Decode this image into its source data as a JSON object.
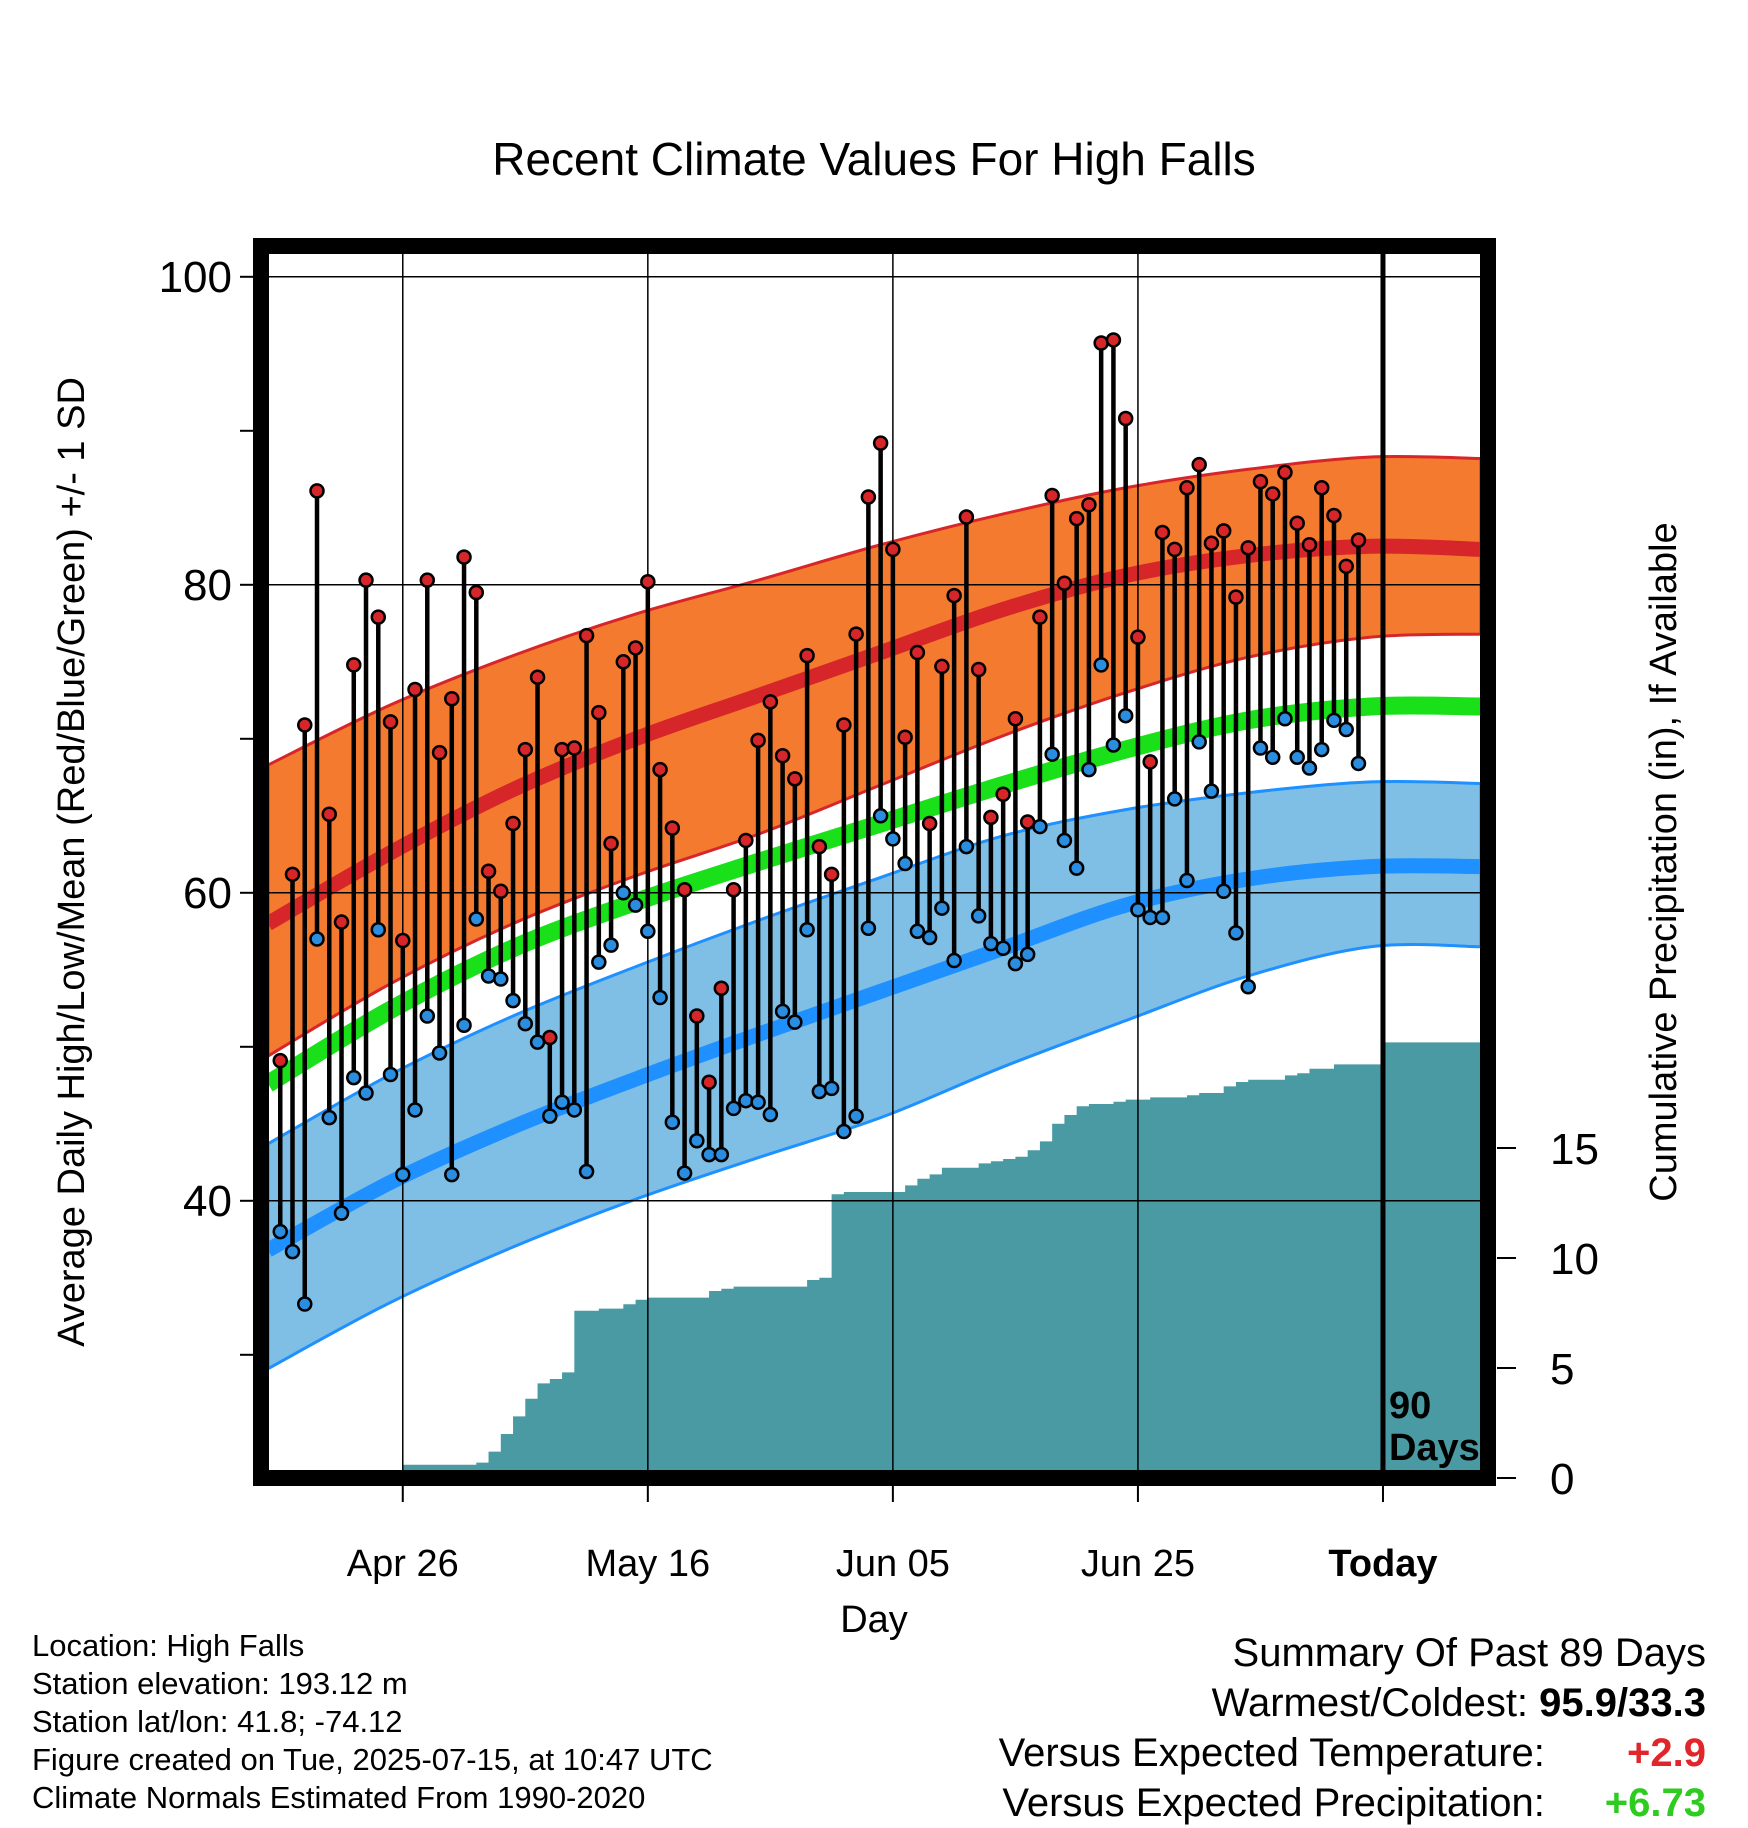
{
  "chart_data": {
    "type": "line",
    "title": "Recent Climate Values For High Falls",
    "xlabel": "Day",
    "ylabel": "Average Daily High/Low/Mean (Red/Blue/Green) +/- 1 SD",
    "y2label": "Cumulative Precipitation (in), If Available",
    "ylim": [
      22,
      102
    ],
    "y_ticks": [
      40,
      60,
      80,
      100
    ],
    "y2lim": [
      0,
      56
    ],
    "y2_ticks": [
      0,
      5,
      10,
      15
    ],
    "x_range_days": [
      0,
      99
    ],
    "x_ticks": [
      {
        "day": 11,
        "label": "Apr 26"
      },
      {
        "day": 31,
        "label": "May 16"
      },
      {
        "day": 51,
        "label": "Jun 05"
      },
      {
        "day": 71,
        "label": "Jun 25"
      },
      {
        "day": 91,
        "label": "Today"
      }
    ],
    "grid": true,
    "today_label": "90 Days",
    "colors": {
      "high_band": "#f47a30",
      "high_mean": "#d7262a",
      "low_band": "#7fbfe6",
      "low_mean": "#1e90ff",
      "mean": "#19e019",
      "precip": "#4a9aa3",
      "high_dot": "#d7262a",
      "low_dot": "#2b8de0"
    },
    "normals": {
      "days": [
        0,
        10,
        20,
        30,
        40,
        50,
        60,
        70,
        80,
        90,
        99
      ],
      "high_mean": [
        58.0,
        62.6,
        66.7,
        70.0,
        72.8,
        75.6,
        78.4,
        80.6,
        81.9,
        82.5,
        82.3
      ],
      "high_upper": [
        68.3,
        72.2,
        75.4,
        78.1,
        80.3,
        82.6,
        84.6,
        86.3,
        87.5,
        88.3,
        88.2
      ],
      "high_lower": [
        49.4,
        54.1,
        58.0,
        61.1,
        63.8,
        67.0,
        70.2,
        73.0,
        75.3,
        76.6,
        76.8
      ],
      "mean": [
        47.6,
        52.4,
        56.4,
        59.4,
        62.0,
        64.5,
        67.0,
        69.3,
        71.2,
        72.1,
        72.1
      ],
      "low_mean": [
        36.8,
        41.2,
        44.8,
        47.9,
        50.8,
        53.6,
        56.4,
        59.2,
        60.9,
        61.7,
        61.7
      ],
      "low_upper": [
        43.7,
        48.2,
        52.0,
        55.2,
        58.2,
        61.0,
        63.7,
        65.4,
        66.5,
        67.2,
        67.1
      ],
      "low_lower": [
        29.1,
        33.4,
        37.0,
        40.1,
        42.8,
        45.4,
        48.7,
        51.7,
        54.6,
        56.5,
        56.5
      ]
    },
    "observed": {
      "start_day": 1,
      "high": [
        49.1,
        61.2,
        70.9,
        86.1,
        65.1,
        58.1,
        74.8,
        80.3,
        77.9,
        71.1,
        56.9,
        73.2,
        80.3,
        69.1,
        72.6,
        81.8,
        79.5,
        61.4,
        60.1,
        64.5,
        69.3,
        74.0,
        50.6,
        69.3,
        69.4,
        76.7,
        71.7,
        63.2,
        75.0,
        75.9,
        80.2,
        68.0,
        64.2,
        60.2,
        52.0,
        47.7,
        53.8,
        60.2,
        63.4,
        69.9,
        72.4,
        68.9,
        67.4,
        75.4,
        63.0,
        61.2,
        70.9,
        76.8,
        85.7,
        89.2,
        82.3,
        70.1,
        75.6,
        64.5,
        74.7,
        79.3,
        84.4,
        74.5,
        64.9,
        66.4,
        71.3,
        64.6,
        77.9,
        85.8,
        80.1,
        84.3,
        85.2,
        95.7,
        95.9,
        90.8,
        76.6,
        68.5,
        83.4,
        82.3,
        86.3,
        87.8,
        82.7,
        83.5,
        79.2,
        82.4,
        86.7,
        85.9,
        87.3,
        84.0,
        82.6,
        86.3,
        84.5,
        81.2,
        82.9
      ],
      "low": [
        38.0,
        36.7,
        33.3,
        57.0,
        45.4,
        39.2,
        48.0,
        47.0,
        57.6,
        48.2,
        41.7,
        45.9,
        52.0,
        49.6,
        41.7,
        51.4,
        58.3,
        54.6,
        54.4,
        53.0,
        51.5,
        50.3,
        45.5,
        46.4,
        45.9,
        41.9,
        55.5,
        56.6,
        60.0,
        59.2,
        57.5,
        53.2,
        45.1,
        41.8,
        43.9,
        43.0,
        43.0,
        46.0,
        46.5,
        46.4,
        45.6,
        52.3,
        51.6,
        57.6,
        47.1,
        47.3,
        44.5,
        45.5,
        57.7,
        65.0,
        63.5,
        61.9,
        57.5,
        57.1,
        59.0,
        55.6,
        63.0,
        58.5,
        56.7,
        56.4,
        55.4,
        56.0,
        64.3,
        69.0,
        63.4,
        61.6,
        68.0,
        74.8,
        69.6,
        71.5,
        58.9,
        58.4,
        58.4,
        66.1,
        60.8,
        69.8,
        66.6,
        60.1,
        57.4,
        53.9,
        69.4,
        68.8,
        71.3,
        68.8,
        68.1,
        69.3,
        71.2,
        70.6,
        68.4
      ]
    },
    "precip": {
      "days": [
        0,
        10,
        11,
        17,
        18,
        19,
        20,
        21,
        22,
        23,
        24,
        25,
        26,
        27,
        28,
        29,
        30,
        31,
        32,
        36,
        37,
        38,
        39,
        44,
        45,
        46,
        47,
        51,
        52,
        53,
        54,
        55,
        58,
        59,
        60,
        61,
        62,
        63,
        64,
        65,
        66,
        67,
        68,
        69,
        70,
        71,
        72,
        73,
        75,
        76,
        77,
        78,
        79,
        80,
        82,
        83,
        84,
        85,
        86,
        87,
        88,
        89,
        90,
        91,
        92,
        99
      ],
      "values": [
        0,
        0,
        0.6,
        0.7,
        1.2,
        2.0,
        2.8,
        3.6,
        4.3,
        4.5,
        4.8,
        7.6,
        7.6,
        7.7,
        7.7,
        7.9,
        8.1,
        8.2,
        8.2,
        8.5,
        8.6,
        8.7,
        8.7,
        9.0,
        9.1,
        12.9,
        13.0,
        13.0,
        13.3,
        13.6,
        13.8,
        14.1,
        14.3,
        14.4,
        14.5,
        14.6,
        14.9,
        15.3,
        16.1,
        16.5,
        16.9,
        17.0,
        17.0,
        17.1,
        17.2,
        17.2,
        17.3,
        17.3,
        17.4,
        17.5,
        17.5,
        17.8,
        18.0,
        18.1,
        18.1,
        18.3,
        18.4,
        18.6,
        18.6,
        18.8,
        18.8,
        18.8,
        18.8,
        19.8,
        19.8,
        19.8
      ]
    }
  },
  "footer_left": {
    "location": "Location: High Falls",
    "elevation": "Station elevation: 193.12 m",
    "latlon": "Station lat/lon: 41.8; -74.12",
    "created": "Figure created on Tue, 2025-07-15, at 10:47 UTC",
    "normals": "Climate Normals Estimated From 1990-2020"
  },
  "summary": {
    "title": "Summary Of Past 89 Days",
    "warmest_label": "Warmest/Coldest:",
    "warmest_value": "95.9/33.3",
    "temp_label": "Versus Expected Temperature:",
    "temp_value": "+2.9",
    "precip_label": "Versus Expected Precipitation:",
    "precip_value": "+6.73"
  }
}
